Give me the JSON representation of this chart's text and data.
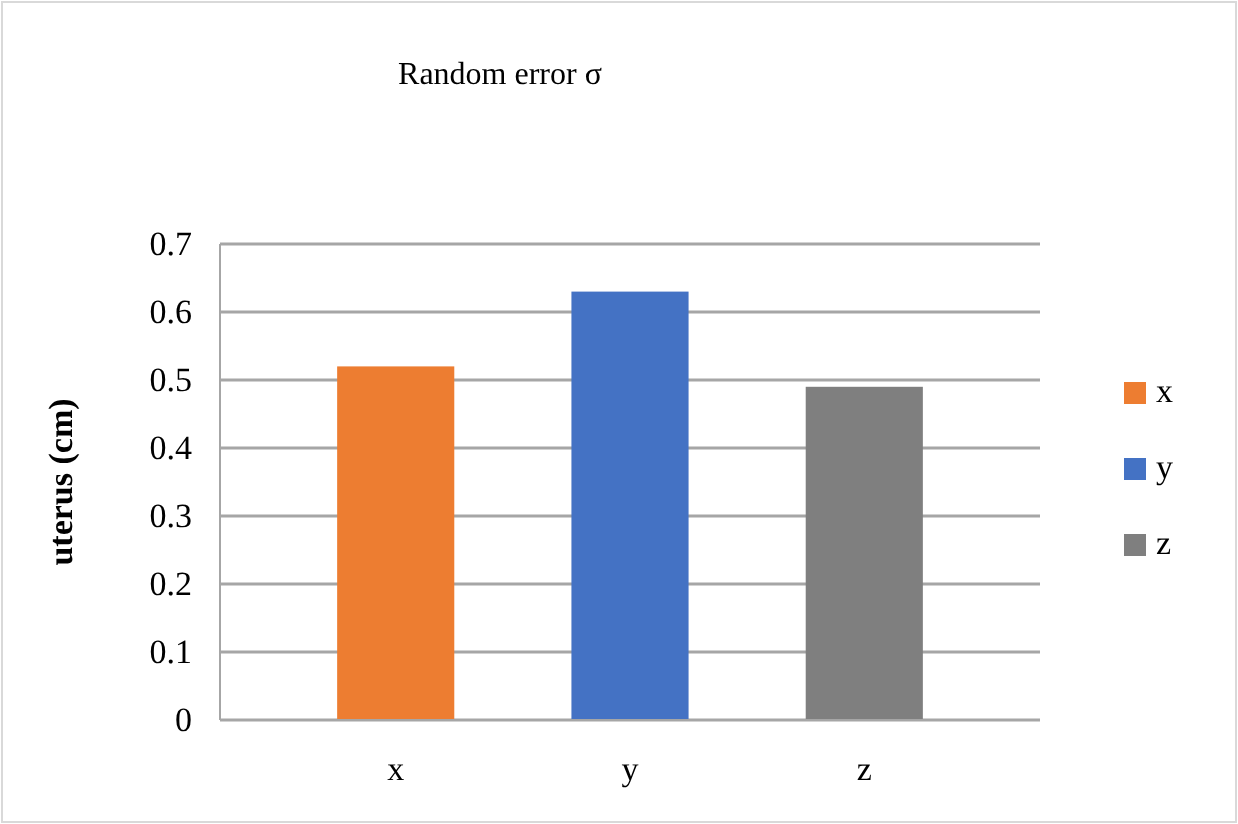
{
  "chart_data": {
    "type": "bar",
    "title": "Random error σ",
    "ylabel": "uterus (cm)",
    "categories": [
      "x",
      "y",
      "z"
    ],
    "series": [
      {
        "name": "x",
        "color": "#ed7d31",
        "values": [
          0.52,
          null,
          null
        ]
      },
      {
        "name": "y",
        "color": "#4472c4",
        "values": [
          null,
          0.63,
          null
        ]
      },
      {
        "name": "z",
        "color": "#7f7f7f",
        "values": [
          null,
          null,
          0.49
        ]
      }
    ],
    "ylim": [
      0,
      0.7
    ],
    "yticks": [
      0,
      0.1,
      0.2,
      0.3,
      0.4,
      0.5,
      0.6,
      0.7
    ],
    "grid": true,
    "legend": "right"
  }
}
